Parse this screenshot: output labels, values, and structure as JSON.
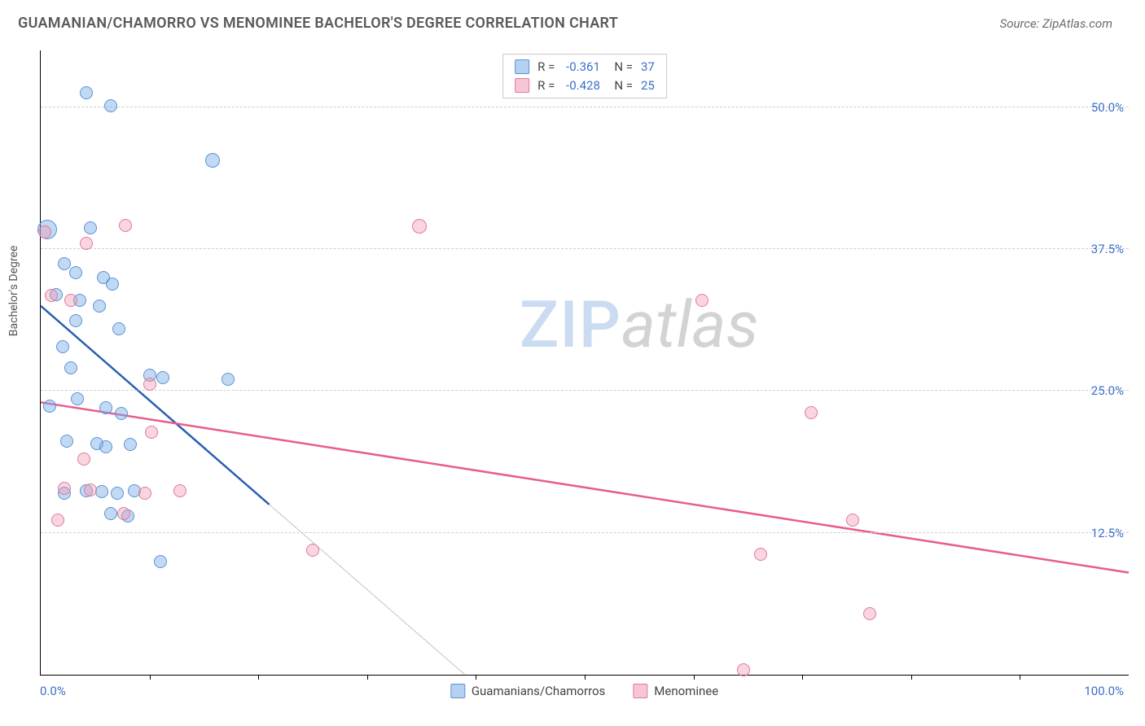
{
  "header": {
    "title": "GUAMANIAN/CHAMORRO VS MENOMINEE BACHELOR'S DEGREE CORRELATION CHART",
    "source": "Source: ZipAtlas.com"
  },
  "watermark": {
    "zip": "ZIP",
    "atlas": "atlas"
  },
  "chart": {
    "type": "scatter",
    "y_label": "Bachelor's Degree",
    "x_min_label": "0.0%",
    "x_max_label": "100.0%",
    "xlim": [
      0,
      100
    ],
    "ylim": [
      0,
      55
    ],
    "y_ticks": [
      12.5,
      25.0,
      37.5,
      50.0
    ],
    "y_tick_labels": [
      "12.5%",
      "25.0%",
      "37.5%",
      "50.0%"
    ],
    "x_tick_positions": [
      10,
      20,
      30,
      40,
      50,
      60,
      70,
      80,
      90
    ],
    "grid_color": "#d0d0d0",
    "background_color": "#ffffff",
    "axis_label_color": "#3b6fc9",
    "series": [
      {
        "key": "guamanians",
        "label": "Guamanians/Chamorros",
        "fill": "rgba(120,170,230,0.45)",
        "stroke": "#5a93d6",
        "swatch_fill": "rgba(120,170,230,0.55)",
        "swatch_stroke": "#5a93d6",
        "r": "-0.361",
        "n": "37",
        "marker_radius": 8,
        "trend": {
          "color": "#2a5fb0",
          "solid": {
            "x1": 0,
            "y1": 32.5,
            "x2": 21,
            "y2": 15
          },
          "dashed": {
            "x1": 21,
            "y1": 15,
            "x2": 39,
            "y2": 0
          }
        },
        "points": [
          {
            "x": 4.2,
            "y": 51.3,
            "r": 8
          },
          {
            "x": 6.4,
            "y": 50.1,
            "r": 8
          },
          {
            "x": 15.8,
            "y": 45.3,
            "r": 9
          },
          {
            "x": 0.6,
            "y": 39.2,
            "r": 12
          },
          {
            "x": 4.6,
            "y": 39.4,
            "r": 8
          },
          {
            "x": 2.2,
            "y": 36.2,
            "r": 8
          },
          {
            "x": 3.2,
            "y": 35.4,
            "r": 8
          },
          {
            "x": 5.8,
            "y": 35.0,
            "r": 8
          },
          {
            "x": 1.4,
            "y": 33.5,
            "r": 8
          },
          {
            "x": 3.6,
            "y": 33.0,
            "r": 8
          },
          {
            "x": 5.4,
            "y": 32.5,
            "r": 8
          },
          {
            "x": 6.6,
            "y": 34.4,
            "r": 8
          },
          {
            "x": 3.2,
            "y": 31.2,
            "r": 8
          },
          {
            "x": 7.2,
            "y": 30.5,
            "r": 8
          },
          {
            "x": 2.0,
            "y": 28.9,
            "r": 8
          },
          {
            "x": 2.8,
            "y": 27.0,
            "r": 8
          },
          {
            "x": 10.0,
            "y": 26.4,
            "r": 8
          },
          {
            "x": 11.2,
            "y": 26.2,
            "r": 8
          },
          {
            "x": 17.2,
            "y": 26.0,
            "r": 8
          },
          {
            "x": 3.4,
            "y": 24.3,
            "r": 8
          },
          {
            "x": 0.8,
            "y": 23.7,
            "r": 8
          },
          {
            "x": 6.0,
            "y": 23.5,
            "r": 8
          },
          {
            "x": 7.4,
            "y": 23.0,
            "r": 8
          },
          {
            "x": 2.4,
            "y": 20.6,
            "r": 8
          },
          {
            "x": 5.2,
            "y": 20.4,
            "r": 8
          },
          {
            "x": 6.0,
            "y": 20.1,
            "r": 8
          },
          {
            "x": 8.2,
            "y": 20.3,
            "r": 8
          },
          {
            "x": 2.2,
            "y": 16.0,
            "r": 8
          },
          {
            "x": 4.2,
            "y": 16.2,
            "r": 8
          },
          {
            "x": 5.6,
            "y": 16.1,
            "r": 8
          },
          {
            "x": 7.0,
            "y": 16.0,
            "r": 8
          },
          {
            "x": 8.6,
            "y": 16.2,
            "r": 8
          },
          {
            "x": 6.4,
            "y": 14.2,
            "r": 8
          },
          {
            "x": 8.0,
            "y": 14.0,
            "r": 8
          },
          {
            "x": 11.0,
            "y": 10.0,
            "r": 8
          }
        ]
      },
      {
        "key": "menominee",
        "label": "Menominee",
        "fill": "rgba(240,150,175,0.40)",
        "stroke": "#e27a9b",
        "swatch_fill": "rgba(240,150,175,0.55)",
        "swatch_stroke": "#e27a9b",
        "r": "-0.428",
        "n": "25",
        "marker_radius": 8,
        "trend": {
          "color": "#e75d8c",
          "solid": {
            "x1": 0,
            "y1": 24.0,
            "x2": 100,
            "y2": 9.0
          }
        },
        "points": [
          {
            "x": 0.4,
            "y": 39.0,
            "r": 8
          },
          {
            "x": 7.8,
            "y": 39.6,
            "r": 8
          },
          {
            "x": 4.2,
            "y": 38.0,
            "r": 8
          },
          {
            "x": 1.0,
            "y": 33.4,
            "r": 8
          },
          {
            "x": 2.8,
            "y": 33.0,
            "r": 8
          },
          {
            "x": 34.8,
            "y": 39.5,
            "r": 9
          },
          {
            "x": 60.8,
            "y": 33.0,
            "r": 8
          },
          {
            "x": 10.0,
            "y": 25.6,
            "r": 8
          },
          {
            "x": 10.2,
            "y": 21.4,
            "r": 8
          },
          {
            "x": 4.0,
            "y": 19.0,
            "r": 8
          },
          {
            "x": 2.2,
            "y": 16.4,
            "r": 8
          },
          {
            "x": 4.6,
            "y": 16.3,
            "r": 8
          },
          {
            "x": 9.6,
            "y": 16.0,
            "r": 8
          },
          {
            "x": 12.8,
            "y": 16.2,
            "r": 8
          },
          {
            "x": 7.6,
            "y": 14.2,
            "r": 8
          },
          {
            "x": 1.6,
            "y": 13.6,
            "r": 8
          },
          {
            "x": 25.0,
            "y": 11.0,
            "r": 8
          },
          {
            "x": 70.8,
            "y": 23.1,
            "r": 8
          },
          {
            "x": 66.2,
            "y": 10.6,
            "r": 8
          },
          {
            "x": 74.6,
            "y": 13.6,
            "r": 8
          },
          {
            "x": 76.2,
            "y": 5.4,
            "r": 8
          },
          {
            "x": 64.6,
            "y": 0.4,
            "r": 8
          }
        ]
      }
    ]
  }
}
